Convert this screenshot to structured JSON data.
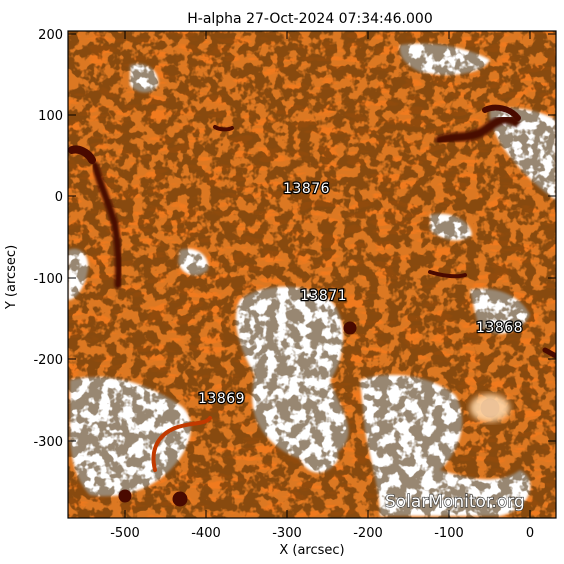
{
  "title": "H-alpha 27-Oct-2024 07:34:46.000",
  "x_axis": {
    "label": "X (arcsec)",
    "ticks": [
      "-500",
      "-400",
      "-300",
      "-200",
      "-100",
      "0"
    ]
  },
  "y_axis": {
    "label": "Y (arcsec)",
    "ticks": [
      "200",
      "100",
      "0",
      "-100",
      "-200",
      "-300"
    ]
  },
  "regions": [
    {
      "id": "13876"
    },
    {
      "id": "13871"
    },
    {
      "id": "13868"
    },
    {
      "id": "13869"
    }
  ],
  "watermark": "SolarMonitor.org",
  "colors": {
    "chromosphere": "#f07a1e",
    "dark_feature": "#4a0a00",
    "bright_plage": "#ffffff",
    "frame": "#000000"
  }
}
